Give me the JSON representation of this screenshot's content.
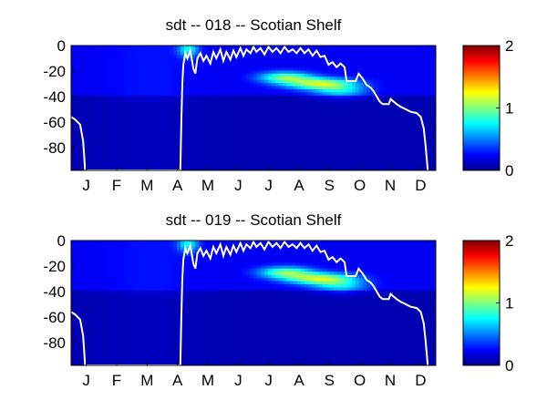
{
  "chart_data": [
    {
      "type": "heatmap",
      "title": "sdt -- 018 -- Scotian Shelf",
      "xlabel": "",
      "ylabel": "",
      "x_tick_labels": [
        "J",
        "F",
        "M",
        "A",
        "M",
        "J",
        "J",
        "A",
        "S",
        "O",
        "N",
        "D"
      ],
      "y_tick_labels": [
        "0",
        "-20",
        "-40",
        "-60",
        "-80"
      ],
      "y_ticks": [
        0,
        -20,
        -40,
        -60,
        -80
      ],
      "ylim": [
        -98,
        0
      ],
      "xlim": [
        1,
        365
      ],
      "colorbar_tick_labels": [
        "0",
        "1",
        "2"
      ],
      "clim": [
        0,
        2
      ],
      "colormap": "jet",
      "colormap_colors": [
        "#00008f",
        "#0000ff",
        "#00ffff",
        "#ffff00",
        "#ff0000",
        "#800000"
      ],
      "line_color": "#ffffff",
      "hotspots": [
        {
          "day": 250,
          "depth": -30,
          "value": 0.9,
          "day_spread": 34,
          "depth_spread": 4.5
        },
        {
          "day": 215,
          "depth": -25,
          "value": 0.75,
          "day_spread": 26,
          "depth_spread": 4.5
        },
        {
          "day": 118,
          "depth": -3,
          "value": 0.55,
          "day_spread": 10,
          "depth_spread": 6
        },
        {
          "day": 270,
          "depth": -36,
          "value": 0.45,
          "day_spread": 26,
          "depth_spread": 5
        }
      ],
      "mixed_layer_depth": [
        [
          1,
          -56
        ],
        [
          5,
          -58
        ],
        [
          10,
          -62
        ],
        [
          13,
          -75
        ],
        [
          15,
          -98
        ],
        [
          110,
          -98
        ],
        [
          111,
          -60
        ],
        [
          112,
          -30
        ],
        [
          113,
          -15
        ],
        [
          115,
          -6
        ],
        [
          117,
          -10
        ],
        [
          120,
          -4
        ],
        [
          123,
          -18
        ],
        [
          125,
          -22
        ],
        [
          127,
          -10
        ],
        [
          130,
          -6
        ],
        [
          133,
          -12
        ],
        [
          136,
          -8
        ],
        [
          140,
          -14
        ],
        [
          143,
          -5
        ],
        [
          146,
          -10
        ],
        [
          150,
          -3
        ],
        [
          153,
          -12
        ],
        [
          156,
          -5
        ],
        [
          160,
          -11
        ],
        [
          163,
          -4
        ],
        [
          166,
          -9
        ],
        [
          170,
          -2
        ],
        [
          173,
          -8
        ],
        [
          176,
          -3
        ],
        [
          180,
          -6
        ],
        [
          183,
          -1
        ],
        [
          186,
          -5
        ],
        [
          190,
          -2
        ],
        [
          194,
          -7
        ],
        [
          198,
          -1
        ],
        [
          202,
          -5
        ],
        [
          206,
          -2
        ],
        [
          210,
          -6
        ],
        [
          214,
          -1
        ],
        [
          218,
          -5
        ],
        [
          222,
          -3
        ],
        [
          226,
          -6
        ],
        [
          230,
          -2
        ],
        [
          234,
          -6
        ],
        [
          238,
          -3
        ],
        [
          242,
          -8
        ],
        [
          246,
          -4
        ],
        [
          250,
          -9
        ],
        [
          254,
          -8
        ],
        [
          258,
          -15
        ],
        [
          262,
          -13
        ],
        [
          266,
          -17
        ],
        [
          270,
          -14
        ],
        [
          274,
          -17
        ],
        [
          276,
          -28
        ],
        [
          285,
          -28
        ],
        [
          288,
          -22
        ],
        [
          292,
          -26
        ],
        [
          296,
          -31
        ],
        [
          300,
          -33
        ],
        [
          303,
          -36
        ],
        [
          306,
          -40
        ],
        [
          309,
          -44
        ],
        [
          312,
          -46
        ],
        [
          318,
          -46
        ],
        [
          320,
          -42
        ],
        [
          323,
          -44
        ],
        [
          326,
          -46
        ],
        [
          330,
          -48
        ],
        [
          335,
          -50
        ],
        [
          340,
          -52
        ],
        [
          346,
          -53
        ],
        [
          350,
          -56
        ],
        [
          353,
          -65
        ],
        [
          355,
          -80
        ],
        [
          357,
          -98
        ]
      ]
    },
    {
      "type": "heatmap",
      "title": "sdt -- 019 -- Scotian Shelf",
      "xlabel": "",
      "ylabel": "",
      "x_tick_labels": [
        "J",
        "F",
        "M",
        "A",
        "M",
        "J",
        "J",
        "A",
        "S",
        "O",
        "N",
        "D"
      ],
      "y_tick_labels": [
        "0",
        "-20",
        "-40",
        "-60",
        "-80"
      ],
      "y_ticks": [
        0,
        -20,
        -40,
        -60,
        -80
      ],
      "ylim": [
        -98,
        0
      ],
      "xlim": [
        1,
        365
      ],
      "colorbar_tick_labels": [
        "0",
        "1",
        "2"
      ],
      "clim": [
        0,
        2
      ],
      "colormap": "jet",
      "colormap_colors": [
        "#00008f",
        "#0000ff",
        "#00ffff",
        "#ffff00",
        "#ff0000",
        "#800000"
      ],
      "line_color": "#ffffff",
      "hotspots": [
        {
          "day": 250,
          "depth": -30,
          "value": 0.9,
          "day_spread": 34,
          "depth_spread": 4.5
        },
        {
          "day": 215,
          "depth": -25,
          "value": 0.75,
          "day_spread": 26,
          "depth_spread": 4.5
        },
        {
          "day": 118,
          "depth": -3,
          "value": 0.55,
          "day_spread": 10,
          "depth_spread": 6
        },
        {
          "day": 270,
          "depth": -36,
          "value": 0.45,
          "day_spread": 26,
          "depth_spread": 5
        }
      ],
      "mixed_layer_depth": [
        [
          1,
          -56
        ],
        [
          5,
          -58
        ],
        [
          10,
          -62
        ],
        [
          13,
          -75
        ],
        [
          15,
          -98
        ],
        [
          110,
          -98
        ],
        [
          111,
          -60
        ],
        [
          112,
          -30
        ],
        [
          113,
          -15
        ],
        [
          115,
          -6
        ],
        [
          117,
          -10
        ],
        [
          120,
          -4
        ],
        [
          123,
          -18
        ],
        [
          125,
          -22
        ],
        [
          127,
          -10
        ],
        [
          130,
          -6
        ],
        [
          133,
          -12
        ],
        [
          136,
          -8
        ],
        [
          140,
          -14
        ],
        [
          143,
          -5
        ],
        [
          146,
          -10
        ],
        [
          150,
          -3
        ],
        [
          153,
          -12
        ],
        [
          156,
          -5
        ],
        [
          160,
          -11
        ],
        [
          163,
          -4
        ],
        [
          166,
          -9
        ],
        [
          170,
          -2
        ],
        [
          173,
          -8
        ],
        [
          176,
          -3
        ],
        [
          180,
          -6
        ],
        [
          183,
          -1
        ],
        [
          186,
          -5
        ],
        [
          190,
          -2
        ],
        [
          194,
          -7
        ],
        [
          198,
          -1
        ],
        [
          202,
          -5
        ],
        [
          206,
          -2
        ],
        [
          210,
          -6
        ],
        [
          214,
          -1
        ],
        [
          218,
          -5
        ],
        [
          222,
          -3
        ],
        [
          226,
          -6
        ],
        [
          230,
          -2
        ],
        [
          234,
          -6
        ],
        [
          238,
          -3
        ],
        [
          242,
          -8
        ],
        [
          246,
          -4
        ],
        [
          250,
          -9
        ],
        [
          254,
          -8
        ],
        [
          258,
          -15
        ],
        [
          262,
          -13
        ],
        [
          266,
          -17
        ],
        [
          270,
          -14
        ],
        [
          274,
          -17
        ],
        [
          276,
          -28
        ],
        [
          285,
          -28
        ],
        [
          288,
          -22
        ],
        [
          292,
          -26
        ],
        [
          296,
          -31
        ],
        [
          300,
          -33
        ],
        [
          303,
          -36
        ],
        [
          306,
          -40
        ],
        [
          309,
          -44
        ],
        [
          312,
          -46
        ],
        [
          318,
          -46
        ],
        [
          320,
          -42
        ],
        [
          323,
          -44
        ],
        [
          326,
          -46
        ],
        [
          330,
          -48
        ],
        [
          335,
          -50
        ],
        [
          340,
          -52
        ],
        [
          346,
          -53
        ],
        [
          350,
          -56
        ],
        [
          353,
          -65
        ],
        [
          355,
          -80
        ],
        [
          357,
          -98
        ]
      ]
    }
  ]
}
